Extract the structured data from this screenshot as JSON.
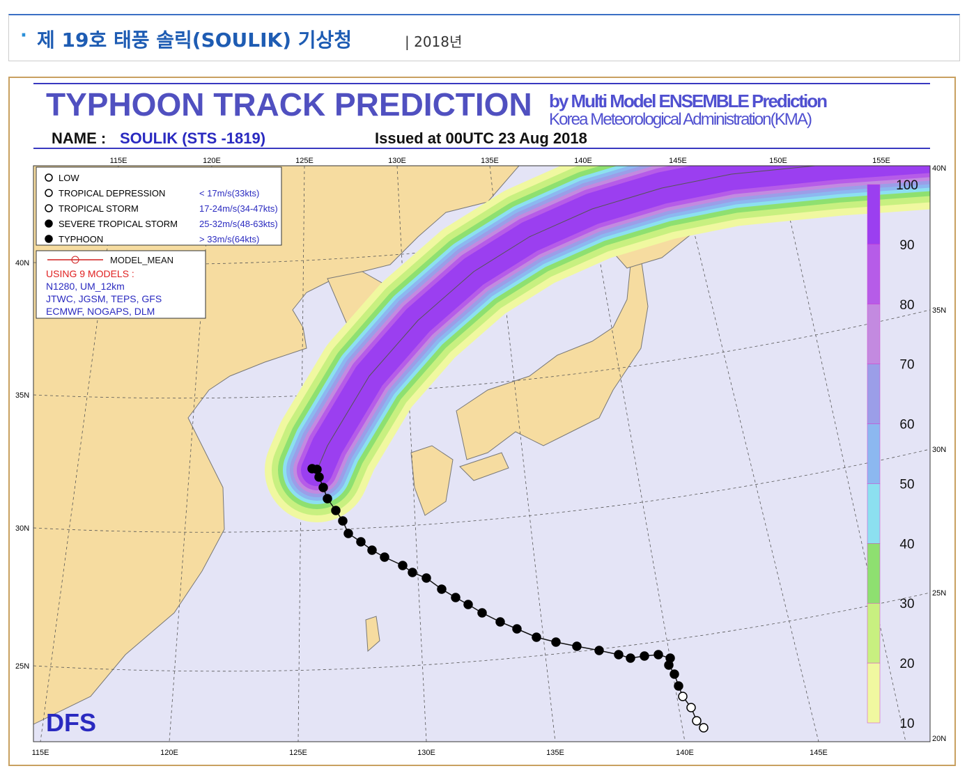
{
  "header": {
    "bullet": "·",
    "title": "제 19호 태풍 솔릭(SOULIK) 기상청",
    "year": "| 2018년"
  },
  "map": {
    "title": "TYPHOON  TRACK  PREDICTION",
    "subtitle_1": "by Multi Model ENSEMBLE Prediction",
    "subtitle_2": "Korea Meteorological Administration(KMA)",
    "name_label": "NAME :",
    "name_value": "SOULIK (STS -1819)",
    "issued": "Issued at 00UTC 23 Aug 2018",
    "legend": [
      {
        "label": "LOW",
        "speed": ""
      },
      {
        "label": "TROPICAL DEPRESSION",
        "speed": "< 17m/s(33kts)"
      },
      {
        "label": "TROPICAL STORM",
        "speed": "17-24m/s(34-47kts)"
      },
      {
        "label": "SEVERE TROPICAL STORM",
        "speed": "25-32m/s(48-63kts)"
      },
      {
        "label": "TYPHOON",
        "speed": "> 33m/s(64kts)"
      }
    ],
    "model_legend": {
      "mean": "MODEL_MEAN",
      "heading": "USING  9 MODELS :",
      "models": [
        "N1280, UM_12km",
        "JTWC,  JGSM,  TEPS, GFS",
        "ECMWF, NOGAPS, DLM"
      ]
    },
    "lon_top": [
      "115E",
      "120E",
      "125E",
      "130E",
      "135E",
      "140E",
      "145E",
      "150E",
      "155E"
    ],
    "lon_bottom": [
      "115E",
      "120E",
      "125E",
      "130E",
      "135E",
      "140E",
      "145E"
    ],
    "lat_left": [
      "40N",
      "35N",
      "30N",
      "25N"
    ],
    "lat_right": [
      "40N",
      "35N",
      "30N",
      "25N",
      "20N"
    ],
    "colorbar": [
      "100",
      "90",
      "80",
      "70",
      "60",
      "50",
      "40",
      "30",
      "20",
      "10"
    ],
    "logo": "DFS"
  }
}
